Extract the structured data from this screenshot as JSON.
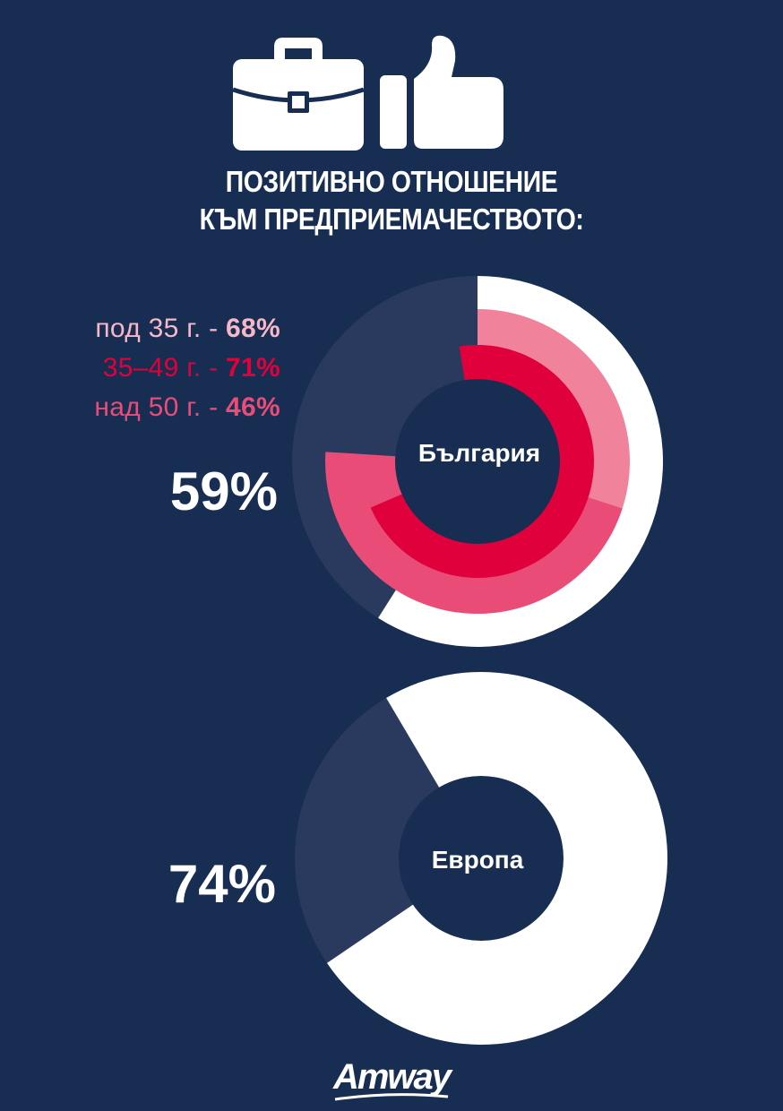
{
  "title": {
    "line1": "ПОЗИТИВНО ОТНОШЕНИЕ",
    "line2": "КЪМ ПРЕДПРИЕМАЧЕСТВОТО:"
  },
  "icons": [
    "briefcase-icon",
    "thumbs-up-icon"
  ],
  "logo_text": "Amway",
  "colors": {
    "background": "#172d52",
    "white": "#ffffff",
    "pink_light": "#f0829c",
    "crimson": "#e0003c",
    "pink_mid": "#ea4c78",
    "remainder": "#2a3a5e"
  },
  "chart_data": [
    {
      "type": "pie",
      "chart_style": "concentric-donut",
      "center_label": "България",
      "total_label": "59%",
      "total_value": 59,
      "rings": [
        {
          "name": "total",
          "value": 59,
          "color": "#ffffff",
          "ring": "outer"
        },
        {
          "name": "под 35 г.",
          "value": 68,
          "color": "#f0829c",
          "ring": "middle"
        },
        {
          "name": "35–49 г.",
          "value": 71,
          "color": "#e0003c",
          "ring": "inner"
        },
        {
          "name": "над 50 г.",
          "value": 46,
          "color": "#ea4c78",
          "ring": "middle"
        }
      ],
      "legend": [
        {
          "label": "под 35 г. - ",
          "value": "68%",
          "color": "#f7b7c7"
        },
        {
          "label": "35–49 г. - ",
          "value": "71%",
          "color": "#e0003c"
        },
        {
          "label": "над 50 г. - ",
          "value": "46%",
          "color": "#ea4c78"
        }
      ],
      "legend_position": "left"
    },
    {
      "type": "pie",
      "chart_style": "donut",
      "center_label": "Европа",
      "total_label": "74%",
      "total_value": 74,
      "rings": [
        {
          "name": "total",
          "value": 74,
          "color": "#ffffff",
          "ring": "outer"
        }
      ]
    }
  ]
}
